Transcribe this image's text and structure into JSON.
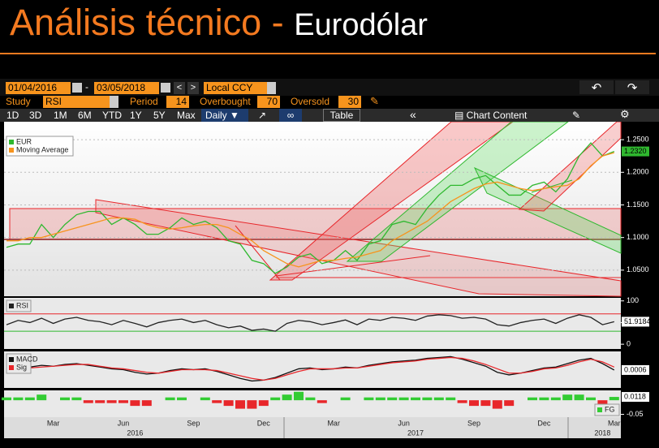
{
  "header": {
    "title": "Análisis técnico",
    "separator": "-",
    "subtitle": "Eurodólar"
  },
  "toolbar": {
    "start_date": "01/04/2016",
    "end_date": "03/05/2018",
    "currency": "Local CCY",
    "study_label": "Study",
    "study": "RSI",
    "period_label": "Period",
    "period": 14,
    "overbought_label": "Overbought",
    "overbought": 70,
    "oversold_label": "Oversold",
    "oversold": 30,
    "ranges": [
      "1D",
      "3D",
      "1M",
      "6M",
      "YTD",
      "1Y",
      "5Y",
      "Max"
    ],
    "frequency": "Daily",
    "table": "Table",
    "chart_content": "Chart Content"
  },
  "chart_data": [
    {
      "type": "line",
      "categories": [
        null,
        null,
        null,
        null,
        "Mar",
        null,
        null,
        null,
        null,
        null,
        "Jun",
        null,
        null,
        null,
        null,
        null,
        "Sep",
        null,
        null,
        null,
        null,
        null,
        "Dec",
        null,
        null,
        null,
        null,
        null,
        "Mar",
        null,
        null,
        null,
        null,
        null,
        "Jun",
        null,
        null,
        null,
        null,
        null,
        "Sep",
        null,
        null,
        null,
        null,
        null,
        "Dec",
        null,
        null,
        null,
        null,
        null,
        "Mar"
      ],
      "year_labels": [
        "2016",
        "2017",
        "2018"
      ],
      "series": [
        {
          "name": "EUR",
          "color": "#2fb82f",
          "last_label": "1.2320",
          "values": [
            1.085,
            1.09,
            1.09,
            1.12,
            1.1,
            1.12,
            1.135,
            1.14,
            1.14,
            1.12,
            1.13,
            1.12,
            1.105,
            1.105,
            1.115,
            1.13,
            1.12,
            1.125,
            1.115,
            1.095,
            1.09,
            1.065,
            1.06,
            1.045,
            1.055,
            1.07,
            1.075,
            1.06,
            1.065,
            1.08,
            1.065,
            1.09,
            1.095,
            1.12,
            1.125,
            1.12,
            1.145,
            1.165,
            1.18,
            1.18,
            1.19,
            1.195,
            1.18,
            1.165,
            1.165,
            1.18,
            1.185,
            1.17,
            1.19,
            1.225,
            1.245,
            1.225,
            1.232
          ]
        },
        {
          "name": "Moving Average",
          "color": "#f7941d",
          "values": [
            1.095,
            1.095,
            1.1,
            1.1,
            1.105,
            1.11,
            1.115,
            1.12,
            1.125,
            1.13,
            1.13,
            1.128,
            1.12,
            1.115,
            1.113,
            1.115,
            1.118,
            1.12,
            1.12,
            1.115,
            1.105,
            1.095,
            1.08,
            1.07,
            1.06,
            1.055,
            1.06,
            1.065,
            1.065,
            1.068,
            1.07,
            1.075,
            1.08,
            1.095,
            1.105,
            1.115,
            1.125,
            1.14,
            1.155,
            1.165,
            1.175,
            1.182,
            1.185,
            1.18,
            1.175,
            1.172,
            1.175,
            1.178,
            1.18,
            1.19,
            1.21,
            1.225,
            1.23
          ]
        }
      ],
      "ylim": [
        1.01,
        1.2775
      ],
      "yticks": [
        {
          "value": 1.05,
          "label": "1.0500"
        },
        {
          "value": 1.1,
          "label": "1.1000"
        },
        {
          "value": 1.15,
          "label": "1.1500"
        },
        {
          "value": 1.2,
          "label": "1.2000"
        },
        {
          "value": 1.25,
          "label": "1.2500"
        }
      ],
      "grid": true,
      "legend": "upper left"
    },
    {
      "type": "line",
      "series": [
        {
          "name": "RSI",
          "color": "#222222",
          "last_label": "51.9184",
          "values": [
            45,
            55,
            50,
            60,
            48,
            58,
            62,
            55,
            52,
            45,
            55,
            48,
            40,
            50,
            55,
            58,
            50,
            55,
            45,
            38,
            42,
            32,
            35,
            30,
            48,
            55,
            52,
            45,
            50,
            56,
            45,
            58,
            55,
            62,
            60,
            55,
            65,
            68,
            66,
            60,
            62,
            58,
            45,
            42,
            50,
            55,
            58,
            48,
            60,
            68,
            62,
            45,
            51.9184
          ]
        }
      ],
      "ylim": [
        -11,
        107
      ],
      "yticks": [
        0,
        50,
        100
      ],
      "legend": "upper left"
    },
    {
      "type": "line",
      "series": [
        {
          "name": "MACD",
          "color": "#111111",
          "last_label": "0.0006",
          "values": [
            0.002,
            0.003,
            0.004,
            0.006,
            0.005,
            0.007,
            0.008,
            0.006,
            0.004,
            0.002,
            0.001,
            -0.002,
            -0.004,
            -0.003,
            0,
            0.002,
            0.001,
            0.002,
            -0.001,
            -0.005,
            -0.009,
            -0.012,
            -0.011,
            -0.008,
            -0.003,
            0.002,
            0.003,
            0.001,
            0.002,
            0.004,
            0.003,
            0.006,
            0.008,
            0.01,
            0.011,
            0.012,
            0.014,
            0.015,
            0.016,
            0.013,
            0.009,
            0.005,
            -0.002,
            -0.005,
            -0.003,
            0,
            0.003,
            0.004,
            0.008,
            0.012,
            0.014,
            0.008,
            0.0006
          ]
        },
        {
          "name": "Sig",
          "color": "#e8262a",
          "values": [
            0.001,
            0.002,
            0.003,
            0.004,
            0.005,
            0.006,
            0.007,
            0.007,
            0.005,
            0.003,
            0.002,
            0,
            -0.002,
            -0.003,
            -0.001,
            0.001,
            0.001,
            0.001,
            0,
            -0.003,
            -0.006,
            -0.009,
            -0.011,
            -0.009,
            -0.005,
            -0.001,
            0.002,
            0.002,
            0.002,
            0.003,
            0.003,
            0.005,
            0.007,
            0.009,
            0.01,
            0.011,
            0.013,
            0.014,
            0.015,
            0.014,
            0.011,
            0.007,
            0.002,
            -0.003,
            -0.003,
            -0.001,
            0.002,
            0.003,
            0.006,
            0.01,
            0.013,
            0.01,
            0.004
          ]
        }
      ],
      "ylim": [
        -0.02,
        0.022
      ],
      "legend": "upper left"
    },
    {
      "type": "bar",
      "series": [
        {
          "name": "FG",
          "color": "#33cc33",
          "negative_color": "#e8262a",
          "last_label": "0.0118",
          "values": [
            0.01,
            0.01,
            0.01,
            0.02,
            0,
            0.01,
            0.01,
            -0.01,
            -0.01,
            -0.01,
            -0.01,
            -0.02,
            -0.02,
            0,
            0.01,
            0.01,
            0,
            0.01,
            -0.01,
            -0.02,
            -0.03,
            -0.03,
            -0.02,
            0.01,
            0.02,
            0.03,
            0.01,
            -0.01,
            0,
            0.01,
            0,
            0.01,
            0.01,
            0.01,
            0.01,
            0.01,
            0.01,
            0.01,
            0.01,
            -0.01,
            -0.02,
            -0.02,
            -0.03,
            -0.02,
            0,
            0.01,
            0.01,
            0.01,
            0.02,
            0.02,
            0.01,
            -0.02,
            0.0118
          ]
        }
      ],
      "ylim": [
        -0.06,
        0.035
      ],
      "yticks": [
        -0.05
      ],
      "legend": "lower right"
    }
  ]
}
